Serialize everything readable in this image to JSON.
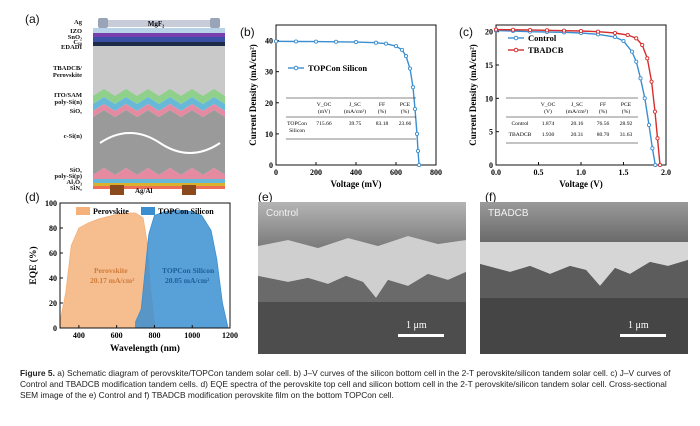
{
  "panel_labels": {
    "a": "(a)",
    "b": "(b)",
    "c": "(c)",
    "d": "(d)",
    "e": "(e)",
    "f": "(f)"
  },
  "schematic": {
    "layers": [
      {
        "label": "Ag",
        "color": "#9aa4b8"
      },
      {
        "label": "IZO",
        "color": "#b8d3e8"
      },
      {
        "label": "SnO₂",
        "color": "#7a3fae"
      },
      {
        "label": "C₆₀",
        "color": "#3a4fa5"
      },
      {
        "label": "EDADI",
        "color": "#1f2c48"
      },
      {
        "label": "TBADCB/\nPerovskite",
        "color": "#c9c9c9"
      },
      {
        "label": "ITO/SAM",
        "color": "#8fd08a"
      },
      {
        "label": "poly-Si(n)",
        "color": "#68b8d8"
      },
      {
        "label": "SiOₓ",
        "color": "#e58aa1"
      },
      {
        "label": "c-Si(n)",
        "color": "#9a9a9a"
      },
      {
        "label": "SiOₓ",
        "color": "#e58aa1"
      },
      {
        "label": "poly-Si(p)",
        "color": "#68b8d8"
      },
      {
        "label": "Al₂O₃",
        "color": "#d9b12a"
      },
      {
        "label": "SiNₓ",
        "color": "#ee6f55"
      }
    ],
    "top_label": "MgF₂",
    "bottom_label": "Ag/Al"
  },
  "sem": {
    "e": {
      "label": "Control",
      "scale": "1 μm"
    },
    "f": {
      "label": "TBADCB",
      "scale": "1 μm"
    }
  },
  "caption": {
    "figure": "Figure 5.",
    "text": " a) Schematic diagram of perovskite/TOPCon tandem solar cell. b) J–V curves of the silicon bottom cell in the 2-T perovskite/silicon tandem solar cell. c) J–V curves of Control and TBADCB modification tandem cells. d) EQE spectra of the perovskite top cell and silicon bottom cell in the 2-T perovskite/silicon tandem solar cell. Cross-sectional SEM image of the e) Control and f) TBADCB modification perovskite film on the bottom TOPCon cell."
  },
  "chart_data": [
    {
      "id": "b",
      "type": "line",
      "xlabel": "Voltage (mV)",
      "ylabel": "Current Density (mA/cm²)",
      "xlim": [
        0,
        800
      ],
      "ylim": [
        0,
        45
      ],
      "xticks": [
        0,
        200,
        400,
        600,
        800
      ],
      "yticks": [
        0,
        10,
        20,
        30,
        40
      ],
      "series": [
        {
          "name": "TOPCon Silicon",
          "color": "#3b8fd1",
          "x": [
            0,
            100,
            200,
            300,
            400,
            500,
            550,
            600,
            630,
            650,
            670,
            685,
            695,
            705,
            710,
            715.66
          ],
          "y": [
            39.75,
            39.7,
            39.65,
            39.6,
            39.5,
            39.3,
            39.0,
            38.2,
            37.0,
            35.0,
            31.0,
            25.0,
            18.0,
            10.0,
            4.5,
            0
          ]
        }
      ],
      "table": {
        "headers": [
          "",
          "V_OC\n(mV)",
          "J_SC\n(mA/cm²)",
          "FF\n(%)",
          "PCE\n(%)"
        ],
        "rows": [
          [
            "TOPCon\nSilicon",
            "715.66",
            "39.75",
            "83.18",
            "23.66"
          ]
        ]
      }
    },
    {
      "id": "c",
      "type": "line",
      "xlabel": "Voltage (V)",
      "ylabel": "Current Density (mA/cm²)",
      "xlim": [
        0,
        2.0
      ],
      "ylim": [
        0,
        21
      ],
      "xticks": [
        0.0,
        0.5,
        1.0,
        1.5,
        2.0
      ],
      "yticks": [
        0,
        5,
        10,
        15,
        20
      ],
      "series": [
        {
          "name": "Control",
          "color": "#3b8fd1",
          "x": [
            0,
            0.2,
            0.4,
            0.6,
            0.8,
            1.0,
            1.2,
            1.4,
            1.5,
            1.6,
            1.65,
            1.7,
            1.75,
            1.8,
            1.84,
            1.874
          ],
          "y": [
            20.16,
            20.1,
            20.0,
            19.95,
            19.9,
            19.8,
            19.6,
            19.2,
            18.6,
            17.0,
            15.5,
            13.0,
            10.0,
            6.0,
            2.5,
            0
          ]
        },
        {
          "name": "TBADCB",
          "color": "#d62d2d",
          "x": [
            0,
            0.2,
            0.4,
            0.6,
            0.8,
            1.0,
            1.2,
            1.4,
            1.55,
            1.65,
            1.72,
            1.78,
            1.83,
            1.87,
            1.9,
            1.93
          ],
          "y": [
            20.31,
            20.28,
            20.25,
            20.2,
            20.15,
            20.1,
            20.0,
            19.8,
            19.5,
            19.0,
            18.0,
            16.0,
            12.5,
            8.0,
            4.0,
            0
          ]
        }
      ],
      "table": {
        "headers": [
          "",
          "V_OC\n(V)",
          "J_SC\n(mA/cm²)",
          "FF\n(%)",
          "PCE\n(%)"
        ],
        "rows": [
          [
            "Control",
            "1.874",
            "20.16",
            "76.56",
            "28.92"
          ],
          [
            "TBADCB",
            "1.930",
            "20.31",
            "80.70",
            "31.63"
          ]
        ]
      }
    },
    {
      "id": "d",
      "type": "area",
      "xlabel": "Wavelength (nm)",
      "ylabel": "EQE (%)",
      "xlim": [
        300,
        1200
      ],
      "ylim": [
        0,
        100
      ],
      "xticks": [
        400,
        600,
        800,
        1000,
        1200
      ],
      "yticks": [
        0,
        20,
        40,
        60,
        80,
        100
      ],
      "series": [
        {
          "name": "Perovskite",
          "color": "#f4b27a",
          "jsc": "20.17 mA/cm²",
          "x": [
            300,
            330,
            360,
            400,
            450,
            500,
            550,
            600,
            650,
            700,
            740,
            760,
            780,
            800
          ],
          "y": [
            5,
            28,
            66,
            80,
            84,
            87,
            89,
            91,
            92,
            92,
            88,
            70,
            30,
            5
          ]
        },
        {
          "name": "TOPCon Silicon",
          "color": "#3b8fd1",
          "jsc": "20.05 mA/cm²",
          "x": [
            700,
            730,
            750,
            770,
            800,
            850,
            900,
            950,
            1000,
            1050,
            1100,
            1130,
            1160,
            1190
          ],
          "y": [
            5,
            15,
            45,
            75,
            90,
            93,
            94,
            94,
            93,
            90,
            78,
            55,
            20,
            0
          ]
        }
      ]
    }
  ]
}
